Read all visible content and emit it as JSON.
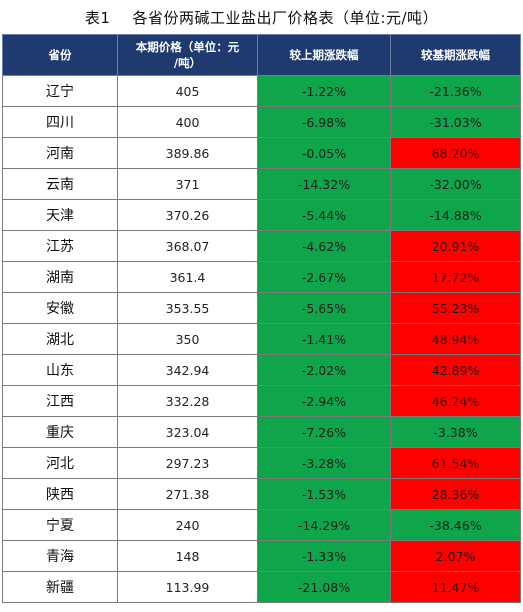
{
  "title": {
    "number": "表1",
    "text": "各省份两碱工业盐出厂价格表（单位:元/吨）"
  },
  "headers": [
    "省份",
    "本期价格（单位：元\n/吨）",
    "较上期涨跌幅",
    "较基期涨跌幅"
  ],
  "colors": {
    "header_bg": "#1f3a6e",
    "up": "#ff0000",
    "down": "#0fa64b"
  },
  "rows": [
    {
      "province": "辽宁",
      "price": "405",
      "prev_change": "-1.22%",
      "base_change": "-21.36%"
    },
    {
      "province": "四川",
      "price": "400",
      "prev_change": "-6.98%",
      "base_change": "-31.03%"
    },
    {
      "province": "河南",
      "price": "389.86",
      "prev_change": "-0.05%",
      "base_change": "68.20%"
    },
    {
      "province": "云南",
      "price": "371",
      "prev_change": "-14.32%",
      "base_change": "-32.00%"
    },
    {
      "province": "天津",
      "price": "370.26",
      "prev_change": "-5.44%",
      "base_change": "-14.88%"
    },
    {
      "province": "江苏",
      "price": "368.07",
      "prev_change": "-4.62%",
      "base_change": "20.91%"
    },
    {
      "province": "湖南",
      "price": "361.4",
      "prev_change": "-2.67%",
      "base_change": "17.72%"
    },
    {
      "province": "安徽",
      "price": "353.55",
      "prev_change": "-5.65%",
      "base_change": "55.23%"
    },
    {
      "province": "湖北",
      "price": "350",
      "prev_change": "-1.41%",
      "base_change": "48.94%"
    },
    {
      "province": "山东",
      "price": "342.94",
      "prev_change": "-2.02%",
      "base_change": "42.89%"
    },
    {
      "province": "江西",
      "price": "332.28",
      "prev_change": "-2.94%",
      "base_change": "46.24%"
    },
    {
      "province": "重庆",
      "price": "323.04",
      "prev_change": "-7.26%",
      "base_change": "-3.38%"
    },
    {
      "province": "河北",
      "price": "297.23",
      "prev_change": "-3.28%",
      "base_change": "61.54%"
    },
    {
      "province": "陕西",
      "price": "271.38",
      "prev_change": "-1.53%",
      "base_change": "28.36%"
    },
    {
      "province": "宁夏",
      "price": "240",
      "prev_change": "-14.29%",
      "base_change": "-38.46%"
    },
    {
      "province": "青海",
      "price": "148",
      "prev_change": "-1.33%",
      "base_change": "2.07%"
    },
    {
      "province": "新疆",
      "price": "113.99",
      "prev_change": "-21.08%",
      "base_change": "11.47%"
    }
  ]
}
